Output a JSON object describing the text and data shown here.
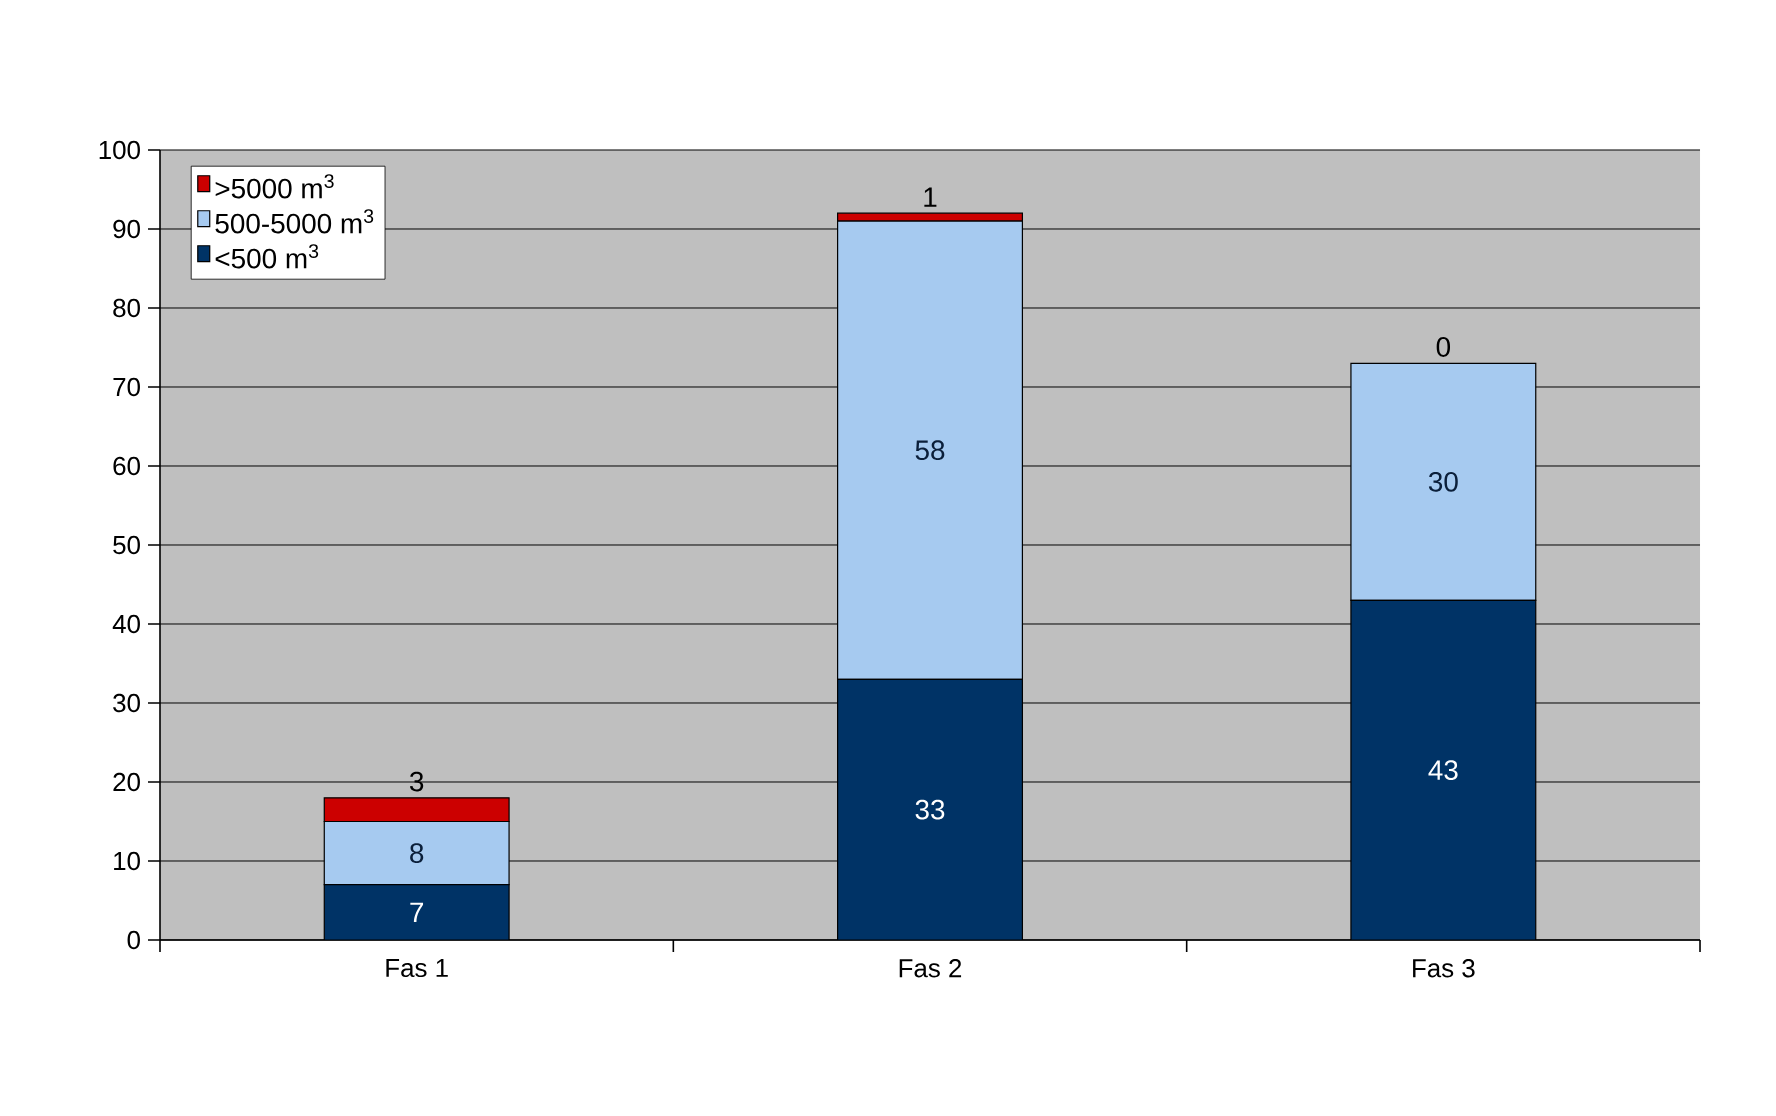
{
  "chart_data": {
    "type": "bar",
    "stacked": true,
    "categories": [
      "Fas 1",
      "Fas 2",
      "Fas 3"
    ],
    "series": [
      {
        "name": "<500 m$^{3}$",
        "color": "#003366",
        "values": [
          7,
          33,
          43
        ]
      },
      {
        "name": "500-5000 m$^{3}$",
        "color": "#a6caf0",
        "values": [
          8,
          58,
          30
        ]
      },
      {
        "name": ">5000 m$^{3}$",
        "color": "#cc0000",
        "values": [
          3,
          1,
          0
        ]
      }
    ],
    "ylim": [
      0,
      100
    ],
    "yticks": [
      0,
      10,
      20,
      30,
      40,
      50,
      60,
      70,
      80,
      90,
      100
    ],
    "grid": "y",
    "legend": "top left",
    "data_labels": true
  }
}
